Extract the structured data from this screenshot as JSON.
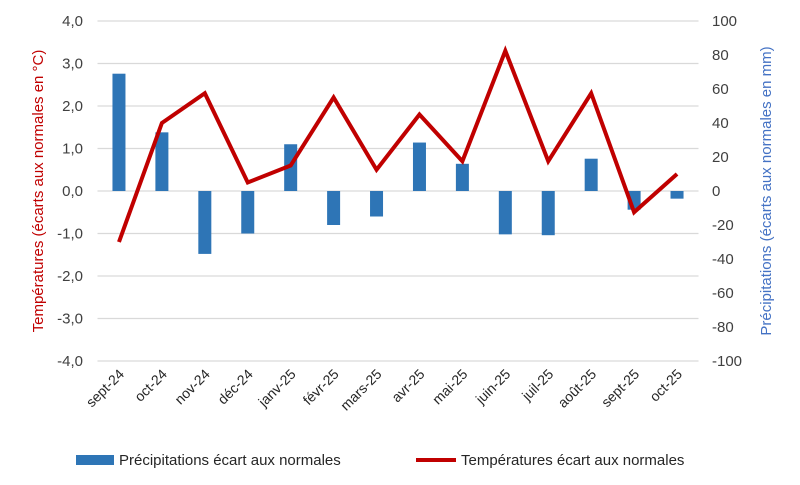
{
  "chart_data": {
    "type": "bar+line",
    "categories": [
      "sept-24",
      "oct-24",
      "nov-24",
      "déc-24",
      "janv-25",
      "févr-25",
      "mars-25",
      "avr-25",
      "mai-25",
      "juin-25",
      "juil-25",
      "août-25",
      "sept-25",
      "oct-25"
    ],
    "series": [
      {
        "name": "Précipitations écart aux normales",
        "type": "bar",
        "axis": "right",
        "color": "#2e75b6",
        "values": [
          69,
          34.5,
          -37,
          -25,
          27.5,
          -20,
          -15,
          28.5,
          16,
          -25.5,
          -26,
          19,
          -11,
          -4.5
        ]
      },
      {
        "name": "Températures écart aux normales",
        "type": "line",
        "axis": "left",
        "color": "#c00000",
        "values": [
          -1.2,
          1.6,
          2.3,
          0.2,
          0.6,
          2.2,
          0.5,
          1.8,
          0.7,
          3.3,
          0.7,
          2.3,
          -0.5,
          0.4
        ]
      }
    ],
    "ylabel_left": "Températures (écarts aux normales  en °C)",
    "ylabel_right": "Précipitations (écarts aux normales  en mm)",
    "ylim_left": [
      -4,
      4
    ],
    "ylim_right": [
      -100,
      100
    ],
    "yticks_left": [
      "4,0",
      "3,0",
      "2,0",
      "1,0",
      "0,0",
      "-1,0",
      "-2,0",
      "-3,0",
      "-4,0"
    ],
    "yticks_right": [
      "100",
      "80",
      "60",
      "40",
      "20",
      "0",
      "-20",
      "-40",
      "-60",
      "-80",
      "-100"
    ],
    "grid": true,
    "legend": "bottom"
  }
}
